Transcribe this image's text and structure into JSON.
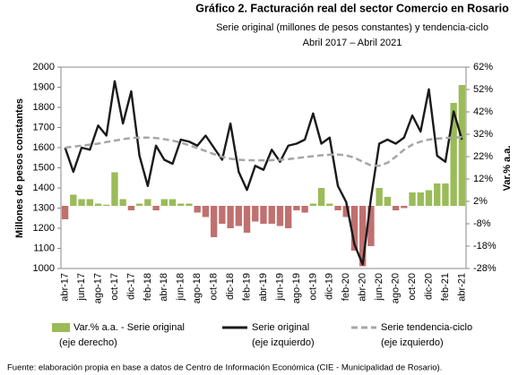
{
  "chart_data": {
    "type": "bar-line",
    "title": "Gráfico 2. Facturación real del sector Comercio en Rosario",
    "subtitle": "Serie original (millones de pesos constantes) y tendencia-ciclo",
    "period": "Abril 2017 – Abril 2021",
    "ylabel": "Millones de pesos constantes",
    "y2label": "Var.% a.a.",
    "source": "Fuente: elaboración propia en base a datos de Centro de Información Económica (CIE - Municipalidad de Rosario).",
    "categories": [
      "abr-17",
      null,
      "jun-17",
      null,
      "ago-17",
      null,
      "oct-17",
      null,
      "dic-17",
      null,
      "feb-18",
      null,
      "abr-18",
      null,
      "jun-18",
      null,
      "ago-18",
      null,
      "oct-18",
      null,
      "dic-18",
      null,
      "feb-19",
      null,
      "abr-19",
      null,
      "jun-19",
      null,
      "ago-19",
      null,
      "oct-19",
      null,
      "dic-19",
      null,
      "feb-20",
      null,
      "abr-20",
      null,
      "jun-20",
      null,
      "ago-20",
      null,
      "oct-20",
      null,
      "dic-20",
      null,
      "feb-21",
      null,
      "abr-21"
    ],
    "ylim": [
      1000,
      2000
    ],
    "yticks": [
      1000,
      1100,
      1200,
      1300,
      1400,
      1500,
      1600,
      1700,
      1800,
      1900,
      2000
    ],
    "y2lim": [
      -28,
      62
    ],
    "y2ticks": [
      {
        "value": -28,
        "label": "-28%"
      },
      {
        "value": -18,
        "label": "-18%"
      },
      {
        "value": -8,
        "label": "-8%"
      },
      {
        "value": 2,
        "label": "2%"
      },
      {
        "value": 12,
        "label": "12%"
      },
      {
        "value": 22,
        "label": "22%"
      },
      {
        "value": 32,
        "label": "32%"
      },
      {
        "value": 42,
        "label": "42%"
      },
      {
        "value": 52,
        "label": "52%"
      },
      {
        "value": 62,
        "label": "62%"
      }
    ],
    "series": [
      {
        "name": "Var.% a.a. - Serie original",
        "note": "(eje derecho)",
        "kind": "bar",
        "axis": "y2",
        "color": "#9bbb59",
        "negative_color": "#c0706f",
        "values": [
          -6,
          5,
          3,
          3,
          1,
          0.5,
          15,
          3,
          -2,
          1,
          3,
          -2,
          3,
          3,
          1,
          1,
          -3,
          -5,
          -14,
          -8,
          -10,
          -9,
          -12,
          -7,
          -8,
          -8,
          -9,
          -10,
          -2,
          -3,
          1,
          8,
          1,
          -2,
          -5,
          -20,
          -27,
          -18,
          8,
          4,
          -2,
          -1,
          6,
          6,
          7,
          10,
          10,
          46,
          54
        ]
      },
      {
        "name": "Serie original",
        "note": "(eje izquierdo)",
        "kind": "line",
        "color": "#1a1a1a",
        "values": [
          1600,
          1480,
          1600,
          1590,
          1710,
          1660,
          1930,
          1720,
          1880,
          1560,
          1410,
          1610,
          1540,
          1520,
          1640,
          1630,
          1610,
          1660,
          1600,
          1540,
          1720,
          1480,
          1390,
          1510,
          1490,
          1590,
          1530,
          1610,
          1620,
          1640,
          1770,
          1620,
          1650,
          1410,
          1330,
          1120,
          1020,
          1350,
          1620,
          1640,
          1620,
          1650,
          1760,
          1680,
          1890,
          1560,
          1530,
          1780,
          1640
        ]
      },
      {
        "name": "Serie tendencia-ciclo",
        "note": "(eje izquierdo)",
        "kind": "dashed",
        "color": "#a6a6a6",
        "values": [
          1600,
          1605,
          1610,
          1615,
          1620,
          1628,
          1635,
          1642,
          1648,
          1650,
          1650,
          1648,
          1642,
          1635,
          1625,
          1612,
          1598,
          1583,
          1568,
          1555,
          1545,
          1540,
          1538,
          1537,
          1537,
          1538,
          1540,
          1543,
          1548,
          1553,
          1558,
          1562,
          1565,
          1566,
          1562,
          1550,
          1530,
          1512,
          1510,
          1525,
          1555,
          1590,
          1615,
          1630,
          1640,
          1645,
          1648,
          1650,
          1652
        ]
      }
    ]
  }
}
